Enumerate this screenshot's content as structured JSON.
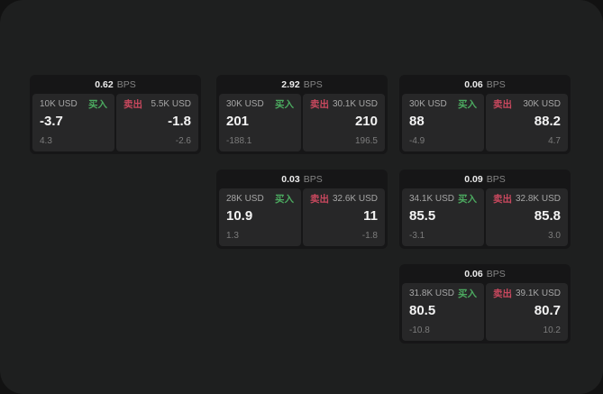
{
  "colors": {
    "buy": "#4caa60",
    "sell": "#c9485e"
  },
  "labels": {
    "bps": "BPS",
    "buy": "买入",
    "sell": "卖出"
  },
  "cards": [
    {
      "bps": "0.62",
      "buy": {
        "notional": "10K USD",
        "value": "-3.7",
        "change": "4.3"
      },
      "sell": {
        "notional": "5.5K USD",
        "value": "-1.8",
        "change": "-2.6"
      }
    },
    {
      "bps": "2.92",
      "buy": {
        "notional": "30K USD",
        "value": "201",
        "change": "-188.1"
      },
      "sell": {
        "notional": "30.1K USD",
        "value": "210",
        "change": "196.5"
      }
    },
    {
      "bps": "0.06",
      "buy": {
        "notional": "30K USD",
        "value": "88",
        "change": "-4.9"
      },
      "sell": {
        "notional": "30K USD",
        "value": "88.2",
        "change": "4.7"
      }
    },
    {
      "bps": "0.03",
      "buy": {
        "notional": "28K USD",
        "value": "10.9",
        "change": "1.3"
      },
      "sell": {
        "notional": "32.6K USD",
        "value": "11",
        "change": "-1.8"
      }
    },
    {
      "bps": "0.09",
      "buy": {
        "notional": "34.1K USD",
        "value": "85.5",
        "change": "-3.1"
      },
      "sell": {
        "notional": "32.8K USD",
        "value": "85.8",
        "change": "3.0"
      }
    },
    {
      "bps": "0.06",
      "buy": {
        "notional": "31.8K USD",
        "value": "80.5",
        "change": "-10.8"
      },
      "sell": {
        "notional": "39.1K USD",
        "value": "80.7",
        "change": "10.2"
      }
    }
  ]
}
